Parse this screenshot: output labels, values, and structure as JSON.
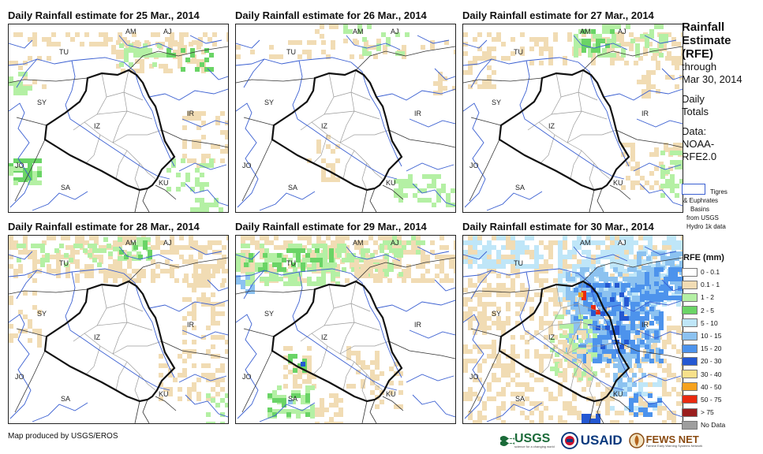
{
  "panels": [
    {
      "title": "Daily Rainfall estimate for 25 Mar., 2014",
      "rain_scenario": "light-north"
    },
    {
      "title": "Daily Rainfall estimate for 26 Mar., 2014",
      "rain_scenario": "very-light"
    },
    {
      "title": "Daily Rainfall estimate for 27 Mar., 2014",
      "rain_scenario": "light-north-east"
    },
    {
      "title": "Daily Rainfall estimate for 28 Mar., 2014",
      "rain_scenario": "scattered"
    },
    {
      "title": "Daily Rainfall estimate for 29 Mar., 2014",
      "rain_scenario": "moderate-north-south"
    },
    {
      "title": "Daily Rainfall estimate for 30 Mar., 2014",
      "rain_scenario": "heavy-east"
    }
  ],
  "map_labels": [
    "AM",
    "AJ",
    "TU",
    "SY",
    "IZ",
    "IR",
    "JO",
    "SA",
    "KU"
  ],
  "legend": {
    "title_lines": [
      "Rainfall",
      "Estimate",
      "(RFE)"
    ],
    "through_lines": [
      "through",
      "Mar 30, 2014"
    ],
    "totals_lines": [
      "Daily",
      "Totals"
    ],
    "data_lines": [
      "Data:",
      "NOAA-",
      "RFE2.0"
    ],
    "basin_lines": [
      "Tigres",
      "& Euphrates",
      "Basins",
      "from USGS",
      "Hydro 1k data"
    ],
    "rfe_title": "RFE (mm)",
    "classes": [
      {
        "label": "0 - 0.1",
        "color": "#ffffff"
      },
      {
        "label": "0.1 - 1",
        "color": "#f1dcb4"
      },
      {
        "label": "1 - 2",
        "color": "#b4f0a4"
      },
      {
        "label": "2 - 5",
        "color": "#6ad466"
      },
      {
        "label": "5 - 10",
        "color": "#bfe6f8"
      },
      {
        "label": "10 - 15",
        "color": "#8cc2f0"
      },
      {
        "label": "15 - 20",
        "color": "#4d93ec"
      },
      {
        "label": "20 - 30",
        "color": "#2458d2"
      },
      {
        "label": "30 - 40",
        "color": "#f8e08a"
      },
      {
        "label": "40 - 50",
        "color": "#f6a21e"
      },
      {
        "label": "50 - 75",
        "color": "#e92a10"
      },
      {
        "label": "> 75",
        "color": "#9a1e1e"
      },
      {
        "label": "No Data",
        "color": "#9e9e9e"
      }
    ]
  },
  "footer": {
    "credit": "Map produced by USGS/EROS",
    "logos": [
      "USGS",
      "USAID",
      "FEWS NET"
    ],
    "usgs_tagline": "science for a changing world",
    "fews_tagline": "Famine Early Warning Systems Network"
  },
  "colors": {
    "basin": "#3a5fd1",
    "country_border": "#111111",
    "province_border": "#9a9a9a"
  }
}
